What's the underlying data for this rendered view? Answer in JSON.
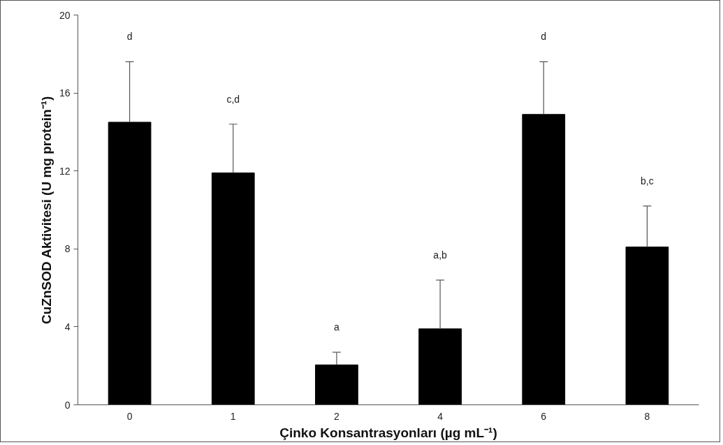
{
  "chart_data": {
    "type": "bar",
    "categories": [
      "0",
      "1",
      "2",
      "4",
      "6",
      "8"
    ],
    "values": [
      14.5,
      11.9,
      2.05,
      3.9,
      14.9,
      8.1
    ],
    "color": "#000000",
    "errors": [
      [
        14.5,
        17.6
      ],
      [
        11.9,
        14.4
      ],
      [
        2.05,
        2.7
      ],
      [
        3.9,
        6.4
      ],
      [
        14.9,
        17.6
      ],
      [
        8.1,
        10.2
      ]
    ],
    "xlabel": "Çinko Konsantrasyonları (µg mL⁻¹)",
    "ylabel": "CuZnSOD Aktivitesi (U mg protein⁻¹)",
    "ylim": [
      0,
      20
    ],
    "yticks": [
      0,
      4,
      8,
      12,
      16,
      20
    ],
    "grid": false,
    "annotations": [
      "d",
      "c,d",
      "a",
      "a,b",
      "d",
      "b,c"
    ]
  }
}
